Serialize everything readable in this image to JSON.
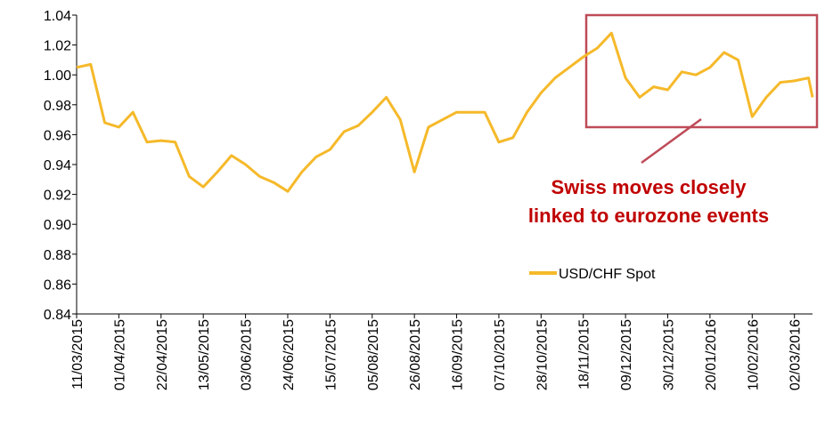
{
  "chart_data": {
    "type": "line",
    "x": [
      "11/03/2015",
      "18/03/2015",
      "25/03/2015",
      "01/04/2015",
      "08/04/2015",
      "15/04/2015",
      "22/04/2015",
      "29/04/2015",
      "06/05/2015",
      "13/05/2015",
      "20/05/2015",
      "27/05/2015",
      "03/06/2015",
      "10/06/2015",
      "17/06/2015",
      "24/06/2015",
      "01/07/2015",
      "08/07/2015",
      "15/07/2015",
      "22/07/2015",
      "29/07/2015",
      "05/08/2015",
      "12/08/2015",
      "19/08/2015",
      "26/08/2015",
      "02/09/2015",
      "09/09/2015",
      "16/09/2015",
      "23/09/2015",
      "30/09/2015",
      "07/10/2015",
      "14/10/2015",
      "21/10/2015",
      "28/10/2015",
      "04/11/2015",
      "11/11/2015",
      "18/11/2015",
      "25/11/2015",
      "02/12/2015",
      "09/12/2015",
      "16/12/2015",
      "23/12/2015",
      "30/12/2015",
      "06/01/2016",
      "13/01/2016",
      "20/01/2016",
      "27/01/2016",
      "03/02/2016",
      "10/02/2016",
      "17/02/2016",
      "24/02/2016",
      "02/03/2016",
      "09/03/2016",
      "11/03/2016"
    ],
    "series": [
      {
        "name": "USD/CHF Spot",
        "color": "#f5b92a",
        "values": [
          1.005,
          1.007,
          0.968,
          0.965,
          0.975,
          0.955,
          0.956,
          0.955,
          0.932,
          0.925,
          0.935,
          0.946,
          0.94,
          0.932,
          0.928,
          0.922,
          0.935,
          0.945,
          0.95,
          0.962,
          0.966,
          0.975,
          0.985,
          0.97,
          0.935,
          0.965,
          0.97,
          0.975,
          0.975,
          0.975,
          0.955,
          0.958,
          0.975,
          0.988,
          0.998,
          1.005,
          1.012,
          1.018,
          1.028,
          0.998,
          0.985,
          0.992,
          0.99,
          1.002,
          1.0,
          1.005,
          1.015,
          1.01,
          0.972,
          0.985,
          0.995,
          0.996,
          0.998,
          0.985
        ]
      }
    ],
    "xlim": [
      "11/03/2015",
      "11/03/2016"
    ],
    "xticks": [
      "11/03/2015",
      "01/04/2015",
      "22/04/2015",
      "13/05/2015",
      "03/06/2015",
      "24/06/2015",
      "15/07/2015",
      "05/08/2015",
      "26/08/2015",
      "16/09/2015",
      "07/10/2015",
      "28/10/2015",
      "18/11/2015",
      "09/12/2015",
      "30/12/2015",
      "20/01/2016",
      "10/02/2016",
      "02/03/2016"
    ],
    "ylim": [
      0.84,
      1.04
    ],
    "yticks": [
      {
        "value": 0.84,
        "label": "0.84"
      },
      {
        "value": 0.86,
        "label": "0.86"
      },
      {
        "value": 0.88,
        "label": "0.88"
      },
      {
        "value": 0.9,
        "label": "0.90"
      },
      {
        "value": 0.92,
        "label": "0.92"
      },
      {
        "value": 0.94,
        "label": "0.94"
      },
      {
        "value": 0.96,
        "label": "0.96"
      },
      {
        "value": 0.98,
        "label": "0.98"
      },
      {
        "value": 1.0,
        "label": "1.00"
      },
      {
        "value": 1.02,
        "label": "1.02"
      },
      {
        "value": 1.04,
        "label": "1.04"
      }
    ],
    "grid": false,
    "legend": "right",
    "annotation": [
      "Swiss moves closely",
      "linked to eurozone events"
    ]
  }
}
